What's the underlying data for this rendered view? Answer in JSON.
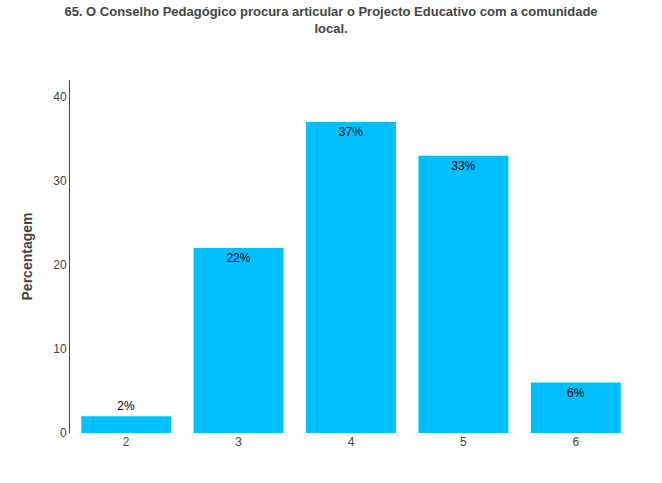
{
  "chart_data": {
    "type": "bar",
    "title": "65. O Conselho Pedagógico procura articular o Projecto Educativo com a comunidade\nlocal.",
    "ylabel": "Percentagem",
    "categories": [
      2,
      3,
      4,
      5,
      6
    ],
    "values": [
      2,
      22,
      37,
      33,
      6
    ],
    "value_labels": [
      "2%",
      "22%",
      "37%",
      "33%",
      "6%"
    ],
    "data_labels": true,
    "color": "#00BFFF",
    "ylim": [
      0,
      42
    ],
    "yticks": [
      0,
      10,
      20,
      30,
      40
    ],
    "grid": false
  }
}
